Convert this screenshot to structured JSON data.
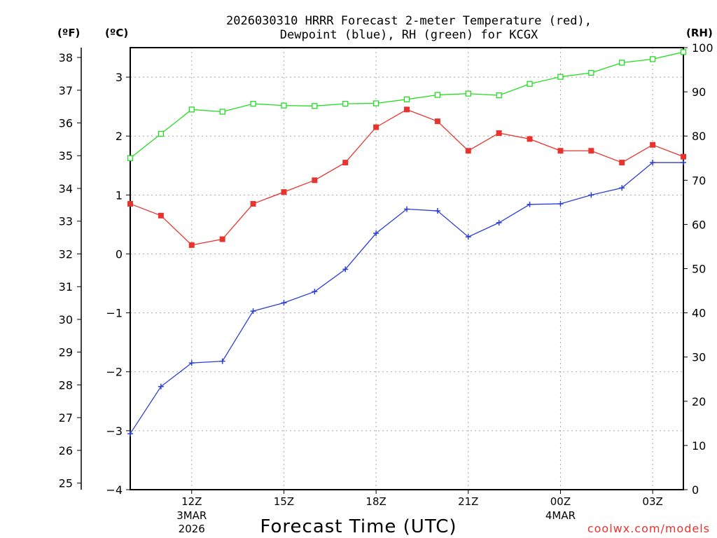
{
  "chart_data": {
    "type": "line",
    "title_line1": "2026030310 HRRR Forecast 2-meter Temperature (red),",
    "title_line2": "Dewpoint (blue), RH (green) for KCGX",
    "xlabel": "Forecast Time (UTC)",
    "credit": "coolwx.com/models",
    "units": {
      "fahrenheit": "(ºF)",
      "celsius": "(ºC)",
      "rh": "(RH)"
    },
    "x_hours": [
      10,
      11,
      12,
      13,
      14,
      15,
      16,
      17,
      18,
      19,
      20,
      21,
      22,
      23,
      24,
      25,
      26,
      27,
      28
    ],
    "x_range": [
      10,
      28
    ],
    "x_ticks": [
      {
        "hour": 12,
        "label": "12Z",
        "sub1": "3MAR",
        "sub2": "2026"
      },
      {
        "hour": 15,
        "label": "15Z",
        "sub1": "",
        "sub2": ""
      },
      {
        "hour": 18,
        "label": "18Z",
        "sub1": "",
        "sub2": ""
      },
      {
        "hour": 21,
        "label": "21Z",
        "sub1": "",
        "sub2": ""
      },
      {
        "hour": 24,
        "label": "00Z",
        "sub1": "4MAR",
        "sub2": ""
      },
      {
        "hour": 27,
        "label": "03Z",
        "sub1": "",
        "sub2": ""
      }
    ],
    "celsius_axis": {
      "range": [
        -4.0,
        3.5
      ],
      "ticks": [
        "-4",
        "-3",
        "-2",
        "-1",
        "0",
        "1",
        "2",
        "3"
      ]
    },
    "fahrenheit_axis": {
      "range": [
        24.8,
        38.3
      ],
      "ticks": [
        "25",
        "26",
        "27",
        "28",
        "29",
        "30",
        "31",
        "32",
        "33",
        "34",
        "35",
        "36",
        "37",
        "38"
      ]
    },
    "rh_axis": {
      "range": [
        0,
        100
      ],
      "ticks": [
        "0",
        "10",
        "20",
        "30",
        "40",
        "50",
        "60",
        "70",
        "80",
        "90",
        "100"
      ]
    },
    "series": [
      {
        "name": "Temperature",
        "unit": "C",
        "color": "#e8342f",
        "marker": "filled-square",
        "values": [
          0.85,
          0.65,
          0.15,
          0.25,
          0.85,
          1.05,
          1.25,
          1.55,
          2.15,
          2.45,
          2.25,
          1.75,
          2.05,
          1.95,
          1.75,
          1.75,
          1.55,
          1.85,
          1.65
        ]
      },
      {
        "name": "Dewpoint",
        "unit": "C",
        "color": "#2b3fd9",
        "marker": "plus",
        "values": [
          -3.05,
          -2.25,
          -1.85,
          -1.82,
          -0.97,
          -0.83,
          -0.64,
          -0.26,
          0.35,
          0.76,
          0.73,
          0.29,
          0.53,
          0.84,
          0.85,
          1.0,
          1.12,
          1.55,
          1.55
        ]
      },
      {
        "name": "Relative Humidity",
        "unit": "%",
        "color": "#22dd22",
        "marker": "open-square",
        "values": [
          75,
          80.5,
          86,
          85.5,
          87.3,
          86.9,
          86.8,
          87.3,
          87.4,
          88.3,
          89.3,
          89.6,
          89.2,
          91.8,
          93.4,
          94.3,
          96.6,
          97.4,
          99
        ]
      }
    ]
  }
}
